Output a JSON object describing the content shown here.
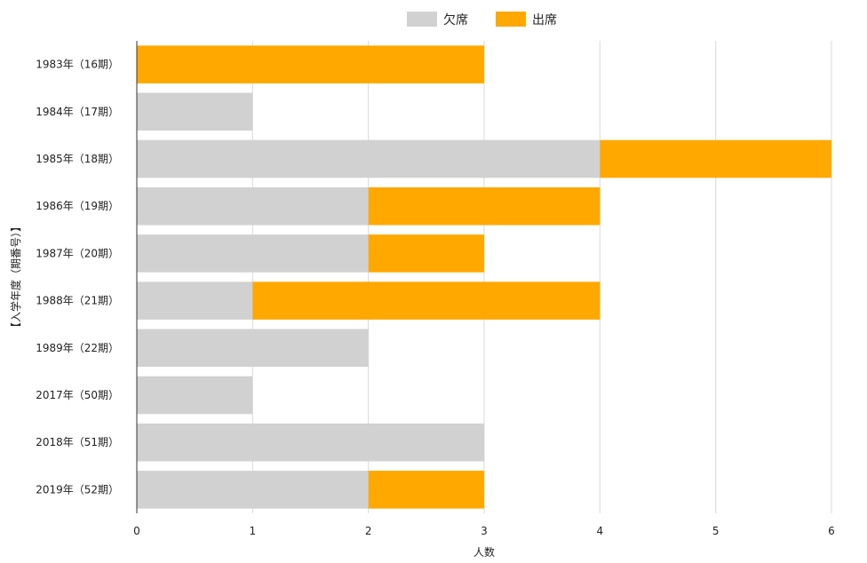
{
  "chart_data": {
    "type": "bar",
    "orientation": "horizontal",
    "stacked": true,
    "categories": [
      "1983年（16期）",
      "1984年（17期）",
      "1985年（18期）",
      "1986年（19期）",
      "1987年（20期）",
      "1988年（21期）",
      "1989年（22期）",
      "2017年（50期）",
      "2018年（51期）",
      "2019年（52期）"
    ],
    "series": [
      {
        "name": "欠席",
        "color": "#d1d1d1",
        "values": [
          0,
          1,
          4,
          2,
          2,
          1,
          2,
          1,
          3,
          2
        ]
      },
      {
        "name": "出席",
        "color": "#ffa800",
        "values": [
          3,
          0,
          2,
          2,
          1,
          3,
          0,
          0,
          0,
          1
        ]
      }
    ],
    "xlabel": "人数",
    "ylabel": "【入学年度（期番号）】",
    "xlim": [
      0,
      6
    ],
    "xticks": [
      0,
      1,
      2,
      3,
      4,
      5,
      6
    ],
    "grid": true,
    "legend_position": "top"
  }
}
